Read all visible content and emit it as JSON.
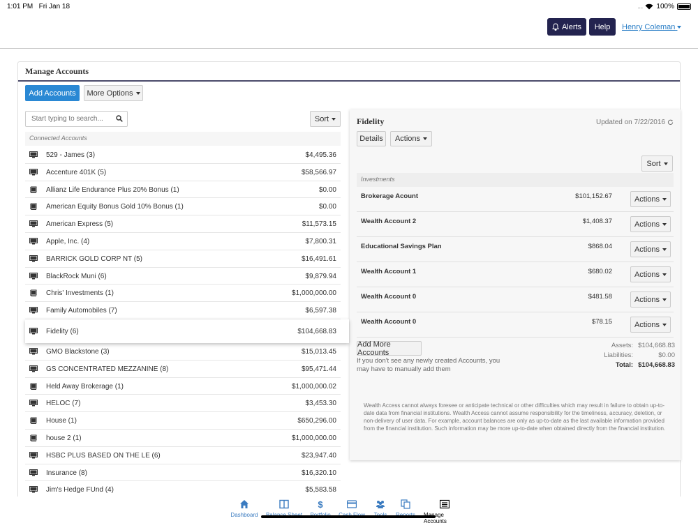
{
  "status_bar": {
    "time": "1:01 PM",
    "date": "Fri Jan 18",
    "battery": "100%"
  },
  "header": {
    "alerts_label": "Alerts",
    "help_label": "Help",
    "user_name": "Henry Coleman"
  },
  "panel": {
    "title": "Manage Accounts",
    "add_accounts_label": "Add Accounts",
    "more_options_label": "More Options"
  },
  "left": {
    "search_placeholder": "Start typing to search...",
    "sort_label": "Sort",
    "section_label": "Connected Accounts",
    "accounts": [
      {
        "name": "529 - James (3)",
        "value": "$4,495.36",
        "icon": "monitor-icon"
      },
      {
        "name": "Accenture 401K (5)",
        "value": "$58,566.97",
        "icon": "monitor-icon"
      },
      {
        "name": "Allianz Life Endurance Plus 20% Bonus (1)",
        "value": "$0.00",
        "icon": "book-icon"
      },
      {
        "name": "American Equity Bonus Gold 10% Bonus (1)",
        "value": "$0.00",
        "icon": "book-icon"
      },
      {
        "name": "American Express (5)",
        "value": "$11,573.15",
        "icon": "monitor-icon"
      },
      {
        "name": "Apple, Inc. (4)",
        "value": "$7,800.31",
        "icon": "monitor-icon"
      },
      {
        "name": "BARRICK GOLD CORP NT (5)",
        "value": "$16,491.61",
        "icon": "monitor-icon"
      },
      {
        "name": "BlackRock Muni (6)",
        "value": "$9,879.94",
        "icon": "monitor-icon"
      },
      {
        "name": "Chris' Investments (1)",
        "value": "$1,000,000.00",
        "icon": "book-icon"
      },
      {
        "name": "Family Automobiles (7)",
        "value": "$6,597.38",
        "icon": "monitor-icon"
      },
      {
        "name": "Fidelity (6)",
        "value": "$104,668.83",
        "icon": "monitor-icon",
        "selected": true
      },
      {
        "name": "GMO Blackstone (3)",
        "value": "$15,013.45",
        "icon": "monitor-icon"
      },
      {
        "name": "GS CONCENTRATED MEZZANINE (8)",
        "value": "$95,471.44",
        "icon": "monitor-icon"
      },
      {
        "name": "Held Away Brokerage (1)",
        "value": "$1,000,000.02",
        "icon": "book-icon"
      },
      {
        "name": "HELOC (7)",
        "value": "$3,453.30",
        "icon": "monitor-icon"
      },
      {
        "name": "House (1)",
        "value": "$650,296.00",
        "icon": "book-icon"
      },
      {
        "name": "house 2 (1)",
        "value": "$1,000,000.00",
        "icon": "book-icon"
      },
      {
        "name": "HSBC PLUS BASED ON THE LE (6)",
        "value": "$23,947.40",
        "icon": "monitor-icon"
      },
      {
        "name": "Insurance (8)",
        "value": "$16,320.10",
        "icon": "monitor-icon"
      },
      {
        "name": "Jim's Hedge FUnd (4)",
        "value": "$5,583.58",
        "icon": "monitor-icon"
      }
    ]
  },
  "detail": {
    "title": "Fidelity",
    "updated": "Updated on 7/22/2016",
    "details_label": "Details",
    "actions_label": "Actions",
    "sort_label": "Sort",
    "section_label": "Investments",
    "investments": [
      {
        "name": "Brokerage Acount",
        "value": "$101,152.67"
      },
      {
        "name": "Wealth Account 2",
        "value": "$1,408.37"
      },
      {
        "name": "Educational Savings Plan",
        "value": "$868.04"
      },
      {
        "name": "Wealth Account 1",
        "value": "$680.02"
      },
      {
        "name": "Wealth Account 0",
        "value": "$481.58"
      },
      {
        "name": "Wealth Account 0",
        "value": "$78.15"
      }
    ],
    "row_action_label": "Actions",
    "add_more_label": "Add More Accounts",
    "note": "If you don't see any newly created Accounts, you may have to manually add them",
    "totals": {
      "assets_label": "Assets:",
      "assets": "$104,668.83",
      "liabilities_label": "Liabilities:",
      "liabilities": "$0.00",
      "total_label": "Total:",
      "total": "$104,668.83"
    },
    "disclaimer": "Wealth Access cannot always foresee or anticipate technical or other difficulties which may result in failure to obtain up-to-date data from financial institutions. Wealth Access cannot assume responsibility for the timeliness, accuracy, deletion, or non-delivery of user data. For example, account balances are only as up-to-date as the last available information provided from the financial institution. Such information may be more up-to-date when obtained directly from the financial institution."
  },
  "bottom_nav": [
    {
      "label": "Dashboard",
      "icon": "home-icon"
    },
    {
      "label": "Balance Sheet",
      "icon": "columns-icon"
    },
    {
      "label": "Portfolio",
      "icon": "dollar-icon"
    },
    {
      "label": "Cash Flow",
      "icon": "card-icon"
    },
    {
      "label": "Tools",
      "icon": "users-icon"
    },
    {
      "label": "Reports",
      "icon": "copy-icon"
    },
    {
      "label": "Manage Accounts",
      "icon": "list-icon",
      "active": true
    }
  ],
  "colors": {
    "primary": "#2a88d4",
    "dark_button": "#23234f",
    "link": "#3a7bc0"
  }
}
